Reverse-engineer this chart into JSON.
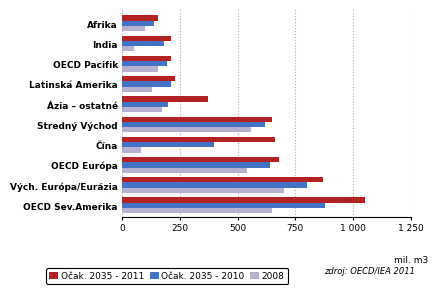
{
  "categories": [
    "OECD Sev.Amerika",
    "Vých. Európa/Eurázia",
    "OECD Európa",
    "Čína",
    "Stredný Východ",
    "Ázia – ostatné",
    "Latinská Amerika",
    "OECD Pacifik",
    "India",
    "Afrika"
  ],
  "series": {
    "Ocak_2035_2011": [
      1050,
      870,
      680,
      660,
      650,
      370,
      230,
      210,
      210,
      155
    ],
    "Ocak_2035_2010": [
      880,
      800,
      640,
      400,
      620,
      200,
      210,
      195,
      180,
      140
    ],
    "Y2008": [
      650,
      700,
      540,
      80,
      560,
      175,
      130,
      155,
      50,
      100
    ]
  },
  "colors": {
    "Ocak_2035_2011": "#b22222",
    "Ocak_2035_2010": "#4472c4",
    "Y2008": "#b8b0d0"
  },
  "legend_labels": [
    "Očak. 2035 - 2011",
    "Očak. 2035 - 2010",
    "2008"
  ],
  "xlabel": "mil. m3",
  "xlim": [
    0,
    1250
  ],
  "xticks": [
    0,
    250,
    500,
    750,
    1000,
    1250
  ],
  "xtick_labels": [
    "0",
    "250",
    "500",
    "750",
    "1 000",
    "1 250"
  ],
  "source_text": "zdroj: OECD/IEA 2011",
  "background_color": "#ffffff",
  "bar_height": 0.26,
  "axis_fontsize": 6.5,
  "legend_fontsize": 6.5,
  "source_fontsize": 6
}
